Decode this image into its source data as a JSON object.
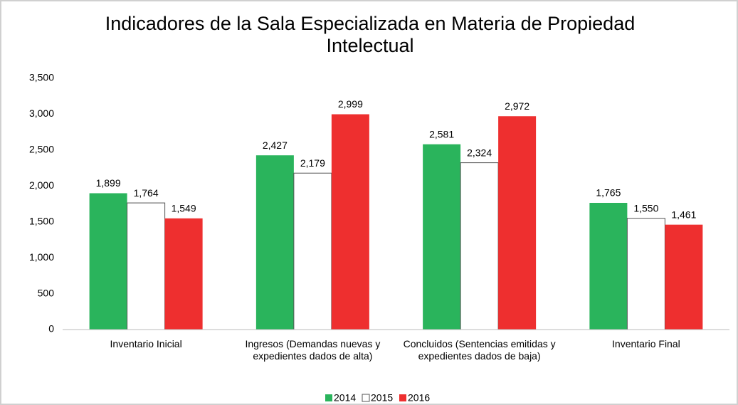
{
  "chart_data": {
    "type": "bar",
    "title": "Indicadores de la Sala Especializada en Materia de Propiedad Intelectual",
    "categories": [
      "Inventario Inicial",
      "Ingresos (Demandas nuevas y expedientes dados de alta)",
      "Concluidos (Sentencias emitidas y expedientes dados de baja)",
      "Inventario Final"
    ],
    "series": [
      {
        "name": "2014",
        "color": "#2ab45c",
        "values": [
          1899,
          2427,
          2581,
          1765
        ],
        "value_labels": [
          "1,899",
          "2,427",
          "2,581",
          "1,765"
        ]
      },
      {
        "name": "2015",
        "color": "#ffffff",
        "values": [
          1764,
          2179,
          2324,
          1550
        ],
        "value_labels": [
          "1,764",
          "2,179",
          "2,324",
          "1,550"
        ]
      },
      {
        "name": "2016",
        "color": "#ee2f2f",
        "values": [
          1549,
          2999,
          2972,
          1461
        ],
        "value_labels": [
          "1,549",
          "2,999",
          "2,972",
          "1,461"
        ]
      }
    ],
    "ylim": [
      0,
      3500
    ],
    "yticks": [
      0,
      500,
      {
        "value": 1000,
        "label": "1,000"
      },
      {
        "value": 1500,
        "label": "1,500"
      },
      {
        "value": 2000,
        "label": "2,000"
      },
      {
        "value": 2500,
        "label": "2,500"
      },
      {
        "value": 3000,
        "label": "3,000"
      },
      {
        "value": 3500,
        "label": "3,500"
      }
    ],
    "legend": "bottom"
  }
}
